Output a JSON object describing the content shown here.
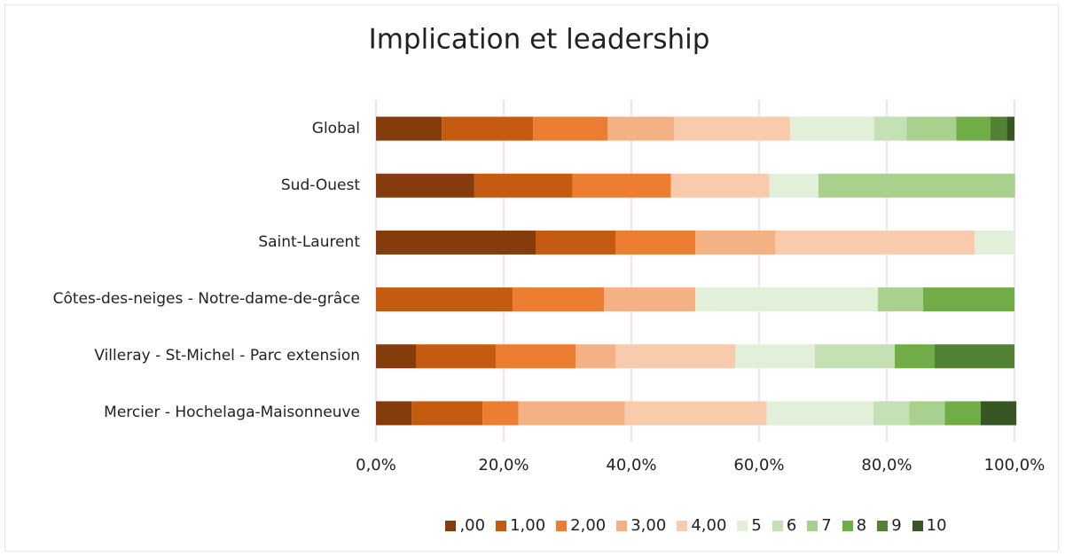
{
  "chart_data": {
    "type": "stacked_bar_horizontal",
    "title": "Implication et leadership",
    "categories": [
      "Global",
      "Sud-Ouest",
      "Saint-Laurent",
      "Côtes-des-neiges - Notre-dame-de-grâce",
      "Villeray - St-Michel - Parc extension",
      "Mercier - Hochelaga-Maisonneuve"
    ],
    "series": [
      {
        "name": ",00",
        "color": "#843c0c",
        "values": [
          10.3,
          15.4,
          25,
          0,
          6.25,
          5.6
        ]
      },
      {
        "name": "1,00",
        "color": "#c55a11",
        "values": [
          14.3,
          15.4,
          12.5,
          21.4,
          12.5,
          11.1
        ]
      },
      {
        "name": "2,00",
        "color": "#ed7d31",
        "values": [
          11.7,
          15.4,
          12.5,
          14.3,
          12.5,
          5.6
        ]
      },
      {
        "name": "3,00",
        "color": "#f4b183",
        "values": [
          10.4,
          0,
          12.5,
          14.3,
          6.25,
          16.7
        ]
      },
      {
        "name": "4,00",
        "color": "#f8cbad",
        "values": [
          18.2,
          15.4,
          31.25,
          0,
          18.75,
          22.2
        ]
      },
      {
        "name": "5",
        "color": "#e2f0d9",
        "values": [
          13.1,
          7.7,
          6.25,
          28.6,
          12.5,
          16.7
        ]
      },
      {
        "name": "6",
        "color": "#c5e0b4",
        "values": [
          5.1,
          0,
          0,
          0,
          12.5,
          5.6
        ]
      },
      {
        "name": "7",
        "color": "#a9d18e",
        "values": [
          7.8,
          30.8,
          0,
          7.1,
          0,
          5.6
        ]
      },
      {
        "name": "8",
        "color": "#70ad47",
        "values": [
          5.3,
          0,
          0,
          14.3,
          6.25,
          5.6
        ]
      },
      {
        "name": "9",
        "color": "#548235",
        "values": [
          2.6,
          0,
          0,
          0,
          12.5,
          0
        ]
      },
      {
        "name": "10",
        "color": "#375623",
        "values": [
          1.2,
          0,
          0,
          0,
          0,
          5.6
        ]
      }
    ],
    "xlim": [
      0,
      100
    ],
    "xticks": [
      {
        "value": 0,
        "label": "0,0%"
      },
      {
        "value": 20,
        "label": "20,0%"
      },
      {
        "value": 40,
        "label": "40,0%"
      },
      {
        "value": 60,
        "label": "60,0%"
      },
      {
        "value": 80,
        "label": "80,0%"
      },
      {
        "value": 100,
        "label": "100,0%"
      }
    ],
    "grid": true,
    "grid_color": "#ead7f7",
    "legend": "bottom"
  }
}
